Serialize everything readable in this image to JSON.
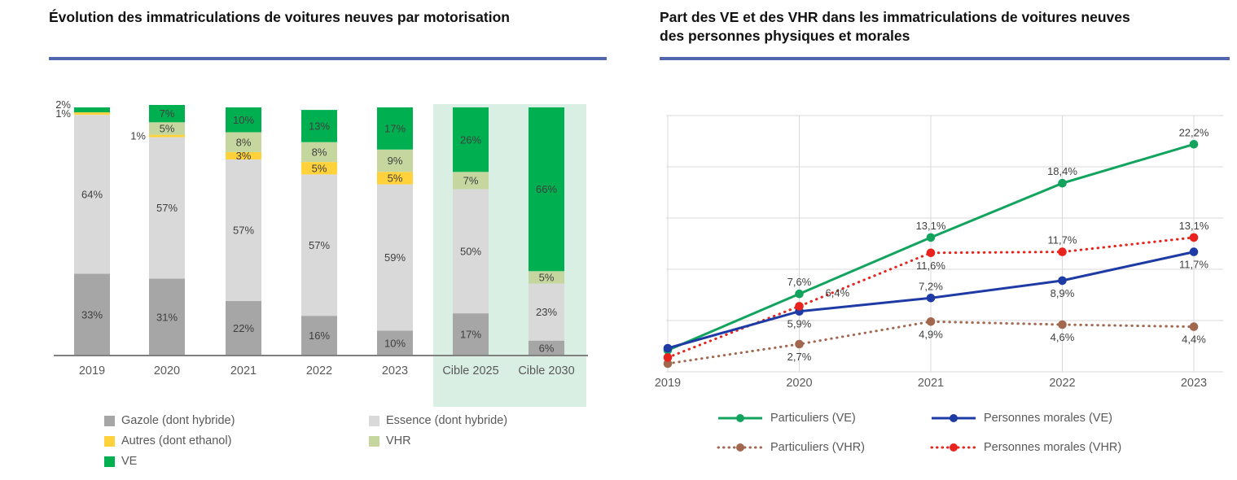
{
  "left_panel": {
    "title": "Évolution des immatriculations de voitures neuves par motorisation"
  },
  "right_panel": {
    "title": "Part des VE et des VHR dans les immatriculations de voitures neuves des personnes physiques et morales"
  },
  "colors": {
    "underline": "#5266ae",
    "gazole": "#a6a6a6",
    "essence": "#d9d9d9",
    "autres": "#ffd23b",
    "vhr": "#c5d79f",
    "ve": "#00b050",
    "highlight": "#d9efe4",
    "green_line": "#12a45f",
    "blue_line": "#1e3ba5",
    "brown_line": "#a2674f",
    "red_line": "#e8231d",
    "label_text": "#3f3f3f",
    "axis_text": "#595959",
    "grid": "#d9d9d9",
    "axis_line": "#808080"
  },
  "chart_data": [
    {
      "type": "bar",
      "stacked": true,
      "title": "Évolution des immatriculations de voitures neuves par motorisation",
      "unit": "%",
      "categories": [
        "2019",
        "2020",
        "2021",
        "2022",
        "2023",
        "Cible 2025",
        "Cible 2030"
      ],
      "highlighted_categories": [
        "Cible 2025",
        "Cible 2030"
      ],
      "ylim": [
        0,
        100
      ],
      "series": [
        {
          "name": "Gazole (dont hybride)",
          "color_key": "gazole",
          "values": [
            33,
            31,
            22,
            16,
            10,
            17,
            6
          ]
        },
        {
          "name": "Essence (dont hybride)",
          "color_key": "essence",
          "values": [
            64,
            57,
            57,
            57,
            59,
            50,
            23
          ]
        },
        {
          "name": "Autres (dont ethanol)",
          "color_key": "autres",
          "values": [
            1,
            1,
            3,
            5,
            5,
            0,
            0
          ]
        },
        {
          "name": "VHR",
          "color_key": "vhr",
          "values": [
            0,
            5,
            8,
            8,
            9,
            7,
            5
          ]
        },
        {
          "name": "VE",
          "color_key": "ve",
          "values": [
            2,
            7,
            10,
            13,
            17,
            26,
            66
          ]
        }
      ]
    },
    {
      "type": "line",
      "title": "Part des VE et des VHR dans les immatriculations de voitures neuves des personnes physiques et morales",
      "unit": "%",
      "x": [
        "2019",
        "2020",
        "2021",
        "2022",
        "2023"
      ],
      "ylim": [
        0,
        25
      ],
      "grid": true,
      "grid_step": 5,
      "legend_position": "bottom",
      "series": [
        {
          "name": "Particuliers (VE)",
          "color_key": "green_line",
          "dash": "solid",
          "values": [
            2.1,
            7.6,
            13.1,
            18.4,
            22.2
          ],
          "point_labels": [
            "",
            "7,6%",
            "13,1%",
            "18,4%",
            "22,2%"
          ],
          "label_pos": [
            "",
            "above",
            "above",
            "above",
            "above"
          ]
        },
        {
          "name": "Personnes morales (VE)",
          "color_key": "blue_line",
          "dash": "solid",
          "values": [
            2.3,
            5.9,
            7.2,
            8.9,
            11.7
          ],
          "point_labels": [
            "",
            "5,9%",
            "7,2%",
            "8,9%",
            "11,7%"
          ],
          "label_pos": [
            "",
            "below",
            "above",
            "below",
            "below"
          ]
        },
        {
          "name": "Particuliers (VHR)",
          "color_key": "brown_line",
          "dash": "dotted",
          "values": [
            0.8,
            2.7,
            4.9,
            4.6,
            4.4
          ],
          "point_labels": [
            "",
            "2,7%",
            "4,9%",
            "4,6%",
            "4,4%"
          ],
          "label_pos": [
            "",
            "below",
            "below",
            "below",
            "below"
          ]
        },
        {
          "name": "Personnes morales (VHR)",
          "color_key": "red_line",
          "dash": "dotted",
          "values": [
            1.4,
            6.4,
            11.6,
            11.7,
            13.1
          ],
          "point_labels": [
            "",
            "6,4%",
            "11,6%",
            "11,7%",
            "13,1%"
          ],
          "label_pos": [
            "",
            "right-above",
            "below",
            "above",
            "above"
          ]
        }
      ]
    }
  ]
}
